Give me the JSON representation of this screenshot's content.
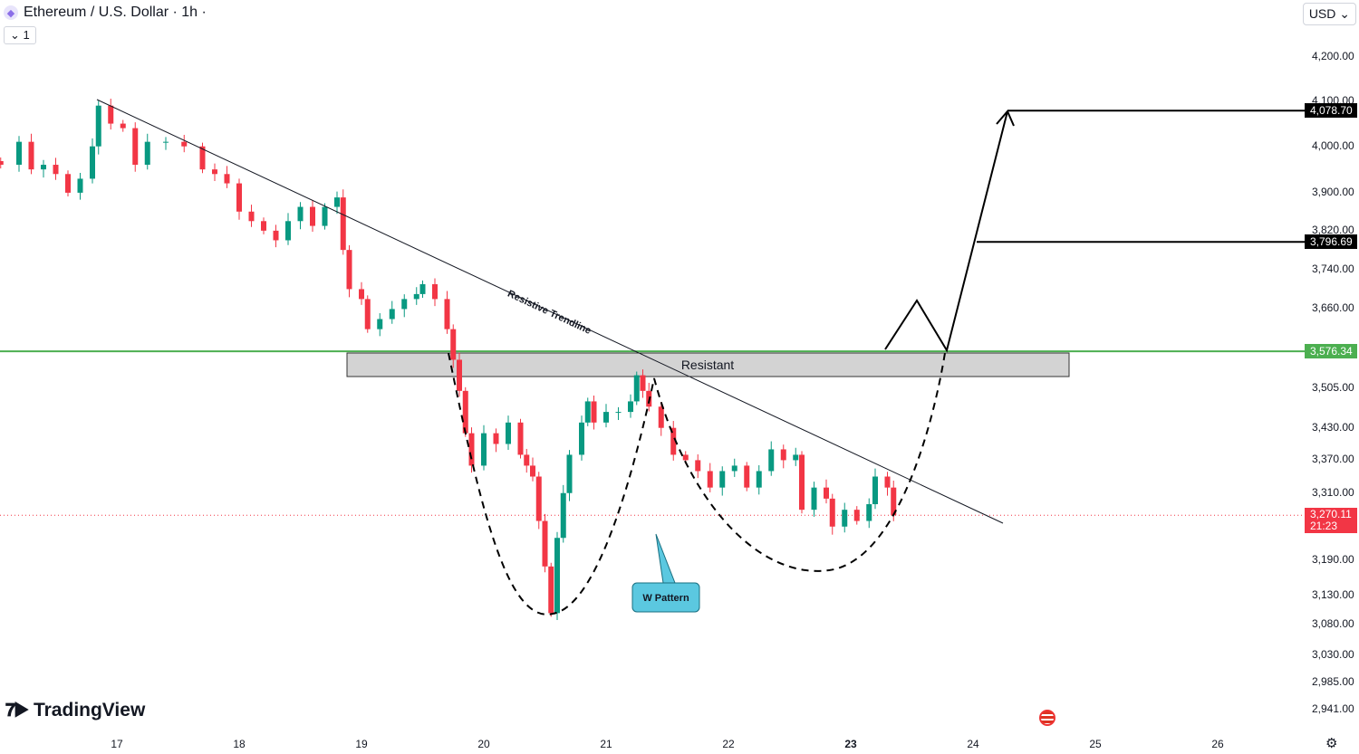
{
  "header": {
    "title": "Ethereum / U.S. Dollar · 1h ·",
    "indicator_toggle": "1",
    "currency": "USD",
    "currency_chevron": "⌄"
  },
  "brand": {
    "name": "TradingView"
  },
  "chart_data": {
    "type": "candlestick",
    "scale": "log",
    "ylim": [
      2920,
      4260
    ],
    "xlim": [
      16.04,
      26.4
    ],
    "x_ticks": [
      "17",
      "18",
      "19",
      "20",
      "21",
      "22",
      "23",
      "24",
      "25",
      "26"
    ],
    "y_ticks": [
      "4,200.00",
      "4,100.00",
      "4,000.00",
      "3,900.00",
      "3,820.00",
      "3,740.00",
      "3,660.00",
      "3,576.34",
      "3,505.00",
      "3,430.00",
      "3,370.00",
      "3,310.00",
      "3,190.00",
      "3,130.00",
      "3,080.00",
      "3,030.00",
      "2,985.00",
      "2,941.00"
    ],
    "y_tick_values": [
      4200,
      4100,
      4000,
      3900,
      3820,
      3740,
      3660,
      3576.34,
      3505,
      3430,
      3370,
      3310,
      3190,
      3130,
      3080,
      3030,
      2985,
      2941
    ],
    "closes": [
      [
        16.05,
        3960
      ],
      [
        16.2,
        4010
      ],
      [
        16.3,
        3950
      ],
      [
        16.4,
        3960
      ],
      [
        16.5,
        3940
      ],
      [
        16.6,
        3900
      ],
      [
        16.7,
        3930
      ],
      [
        16.8,
        4000
      ],
      [
        16.85,
        4090
      ],
      [
        16.95,
        4050
      ],
      [
        17.05,
        4040
      ],
      [
        17.15,
        3960
      ],
      [
        17.25,
        4010
      ],
      [
        17.4,
        4010
      ],
      [
        17.55,
        4000
      ],
      [
        17.7,
        3950
      ],
      [
        17.8,
        3940
      ],
      [
        17.9,
        3920
      ],
      [
        18.0,
        3860
      ],
      [
        18.1,
        3840
      ],
      [
        18.2,
        3820
      ],
      [
        18.3,
        3800
      ],
      [
        18.4,
        3840
      ],
      [
        18.5,
        3870
      ],
      [
        18.6,
        3830
      ],
      [
        18.7,
        3870
      ],
      [
        18.8,
        3890
      ],
      [
        18.85,
        3780
      ],
      [
        18.9,
        3700
      ],
      [
        19.0,
        3680
      ],
      [
        19.05,
        3620
      ],
      [
        19.15,
        3640
      ],
      [
        19.25,
        3660
      ],
      [
        19.35,
        3680
      ],
      [
        19.45,
        3690
      ],
      [
        19.5,
        3710
      ],
      [
        19.6,
        3680
      ],
      [
        19.7,
        3620
      ],
      [
        19.75,
        3560
      ],
      [
        19.8,
        3500
      ],
      [
        19.85,
        3420
      ],
      [
        19.9,
        3360
      ],
      [
        20.0,
        3420
      ],
      [
        20.1,
        3400
      ],
      [
        20.2,
        3440
      ],
      [
        20.3,
        3380
      ],
      [
        20.35,
        3360
      ],
      [
        20.4,
        3340
      ],
      [
        20.45,
        3260
      ],
      [
        20.5,
        3180
      ],
      [
        20.55,
        3100
      ],
      [
        20.6,
        3230
      ],
      [
        20.65,
        3310
      ],
      [
        20.7,
        3380
      ],
      [
        20.8,
        3440
      ],
      [
        20.85,
        3480
      ],
      [
        20.9,
        3440
      ],
      [
        21.0,
        3460
      ],
      [
        21.1,
        3460
      ],
      [
        21.2,
        3480
      ],
      [
        21.25,
        3530
      ],
      [
        21.3,
        3500
      ],
      [
        21.35,
        3470
      ],
      [
        21.45,
        3430
      ],
      [
        21.55,
        3380
      ],
      [
        21.65,
        3370
      ],
      [
        21.75,
        3350
      ],
      [
        21.85,
        3320
      ],
      [
        21.95,
        3350
      ],
      [
        22.05,
        3360
      ],
      [
        22.15,
        3320
      ],
      [
        22.25,
        3350
      ],
      [
        22.35,
        3390
      ],
      [
        22.45,
        3370
      ],
      [
        22.55,
        3380
      ],
      [
        22.6,
        3280
      ],
      [
        22.7,
        3320
      ],
      [
        22.8,
        3300
      ],
      [
        22.85,
        3250
      ],
      [
        22.95,
        3280
      ],
      [
        23.05,
        3260
      ],
      [
        23.15,
        3290
      ],
      [
        23.2,
        3340
      ],
      [
        23.3,
        3320
      ],
      [
        23.35,
        3270
      ]
    ],
    "up_color": "#089981",
    "down_color": "#f23645",
    "resistance_level": 3576.34,
    "current_price": "3,270.11",
    "countdown": "21:23",
    "target_labels": [
      "4,078.70",
      "3,796.69"
    ],
    "target_values": [
      4078.7,
      3796.69
    ],
    "annotations": {
      "trendline": "Resistive Trendline",
      "zone": "Resistant",
      "pattern": "W Pattern"
    },
    "colors": {
      "resistance": "#4caf50",
      "zone": "#d3d3d3",
      "callout": "#5bc8e0",
      "price_tag": "#f23645"
    }
  }
}
